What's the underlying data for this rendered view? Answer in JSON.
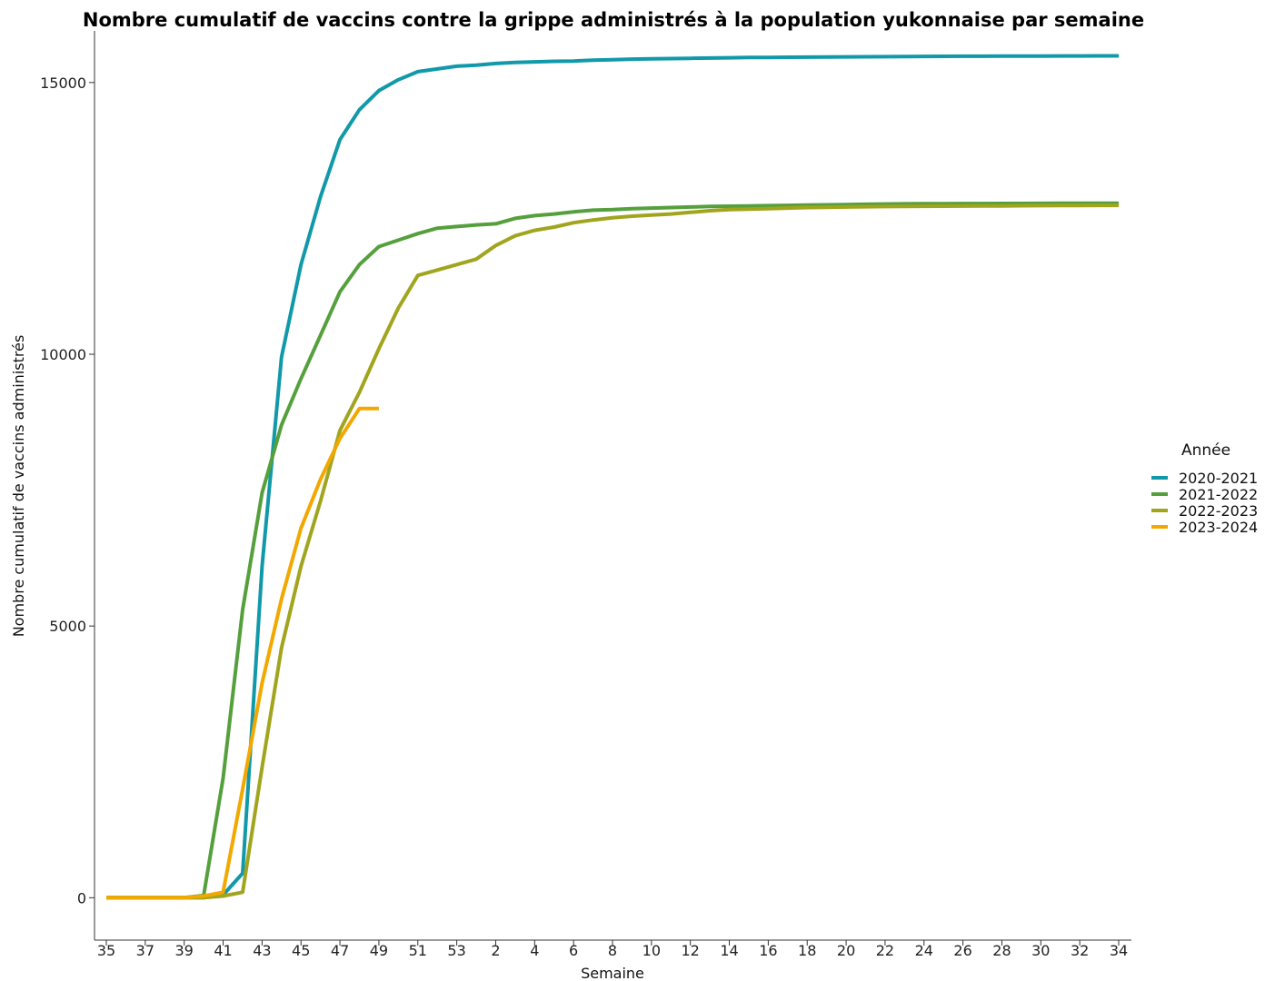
{
  "chart_data": {
    "type": "line",
    "title": "Nombre cumulatif de vaccins contre la grippe administrés à la population yukonnaise par semaine",
    "xlabel": "Semaine",
    "ylabel": "Nombre cumulatif de vaccins administrés",
    "legend_title": "Année",
    "legend_position": "right",
    "grid": false,
    "ylim": [
      -780,
      15950
    ],
    "y_ticks": [
      0,
      5000,
      10000,
      15000
    ],
    "weeks": [
      "35",
      "36",
      "37",
      "38",
      "39",
      "40",
      "41",
      "42",
      "43",
      "44",
      "45",
      "46",
      "47",
      "48",
      "49",
      "50",
      "51",
      "52",
      "53",
      "1",
      "2",
      "3",
      "4",
      "5",
      "6",
      "7",
      "8",
      "9",
      "10",
      "11",
      "12",
      "13",
      "14",
      "15",
      "16",
      "17",
      "18",
      "19",
      "20",
      "21",
      "22",
      "23",
      "24",
      "25",
      "26",
      "27",
      "28",
      "29",
      "30",
      "31",
      "32",
      "33",
      "34"
    ],
    "x_tick_labels": [
      "35",
      "37",
      "39",
      "41",
      "43",
      "45",
      "47",
      "49",
      "51",
      "53",
      "2",
      "4",
      "6",
      "8",
      "10",
      "12",
      "14",
      "16",
      "18",
      "20",
      "22",
      "24",
      "26",
      "28",
      "30",
      "32",
      "34"
    ],
    "series": [
      {
        "name": "2020-2021",
        "color": "#1199AA",
        "values": [
          0,
          0,
          0,
          0,
          0,
          0,
          50,
          450,
          6100,
          9950,
          11650,
          12900,
          13950,
          14500,
          14850,
          15050,
          15200,
          15250,
          15300,
          15320,
          15350,
          15370,
          15380,
          15390,
          15395,
          15410,
          15420,
          15430,
          15435,
          15440,
          15445,
          15450,
          15455,
          15460,
          15462,
          15465,
          15467,
          15470,
          15472,
          15474,
          15476,
          15478,
          15480,
          15482,
          15483,
          15484,
          15485,
          15486,
          15487,
          15488,
          15489,
          15490,
          15490
        ]
      },
      {
        "name": "2021-2022",
        "color": "#55A03C",
        "values": [
          0,
          0,
          0,
          0,
          0,
          40,
          2200,
          5300,
          7450,
          8700,
          9550,
          10350,
          11150,
          11650,
          11980,
          12100,
          12220,
          12320,
          12350,
          12380,
          12400,
          12500,
          12550,
          12580,
          12620,
          12650,
          12660,
          12680,
          12690,
          12700,
          12710,
          12720,
          12725,
          12730,
          12735,
          12740,
          12745,
          12750,
          12755,
          12760,
          12765,
          12767,
          12769,
          12771,
          12772,
          12773,
          12774,
          12775,
          12776,
          12777,
          12778,
          12779,
          12780
        ]
      },
      {
        "name": "2022-2023",
        "color": "#A1A51E",
        "values": [
          0,
          0,
          0,
          0,
          0,
          0,
          30,
          100,
          2400,
          4600,
          6100,
          7300,
          8600,
          9300,
          10100,
          10850,
          11450,
          11550,
          11650,
          11750,
          12000,
          12180,
          12280,
          12340,
          12420,
          12470,
          12510,
          12540,
          12560,
          12580,
          12610,
          12640,
          12660,
          12670,
          12680,
          12690,
          12700,
          12705,
          12710,
          12715,
          12718,
          12720,
          12722,
          12724,
          12726,
          12728,
          12730,
          12732,
          12734,
          12736,
          12738,
          12740,
          12740
        ]
      },
      {
        "name": "2023-2024",
        "color": "#F2A800",
        "values": [
          0,
          0,
          0,
          0,
          0,
          30,
          100,
          2000,
          3950,
          5500,
          6800,
          7700,
          8450,
          9000,
          9000,
          null,
          null,
          null,
          null,
          null,
          null,
          null,
          null,
          null,
          null,
          null,
          null,
          null,
          null,
          null,
          null,
          null,
          null,
          null,
          null,
          null,
          null,
          null,
          null,
          null,
          null,
          null,
          null,
          null,
          null,
          null,
          null,
          null,
          null,
          null,
          null,
          null,
          null
        ]
      }
    ]
  }
}
